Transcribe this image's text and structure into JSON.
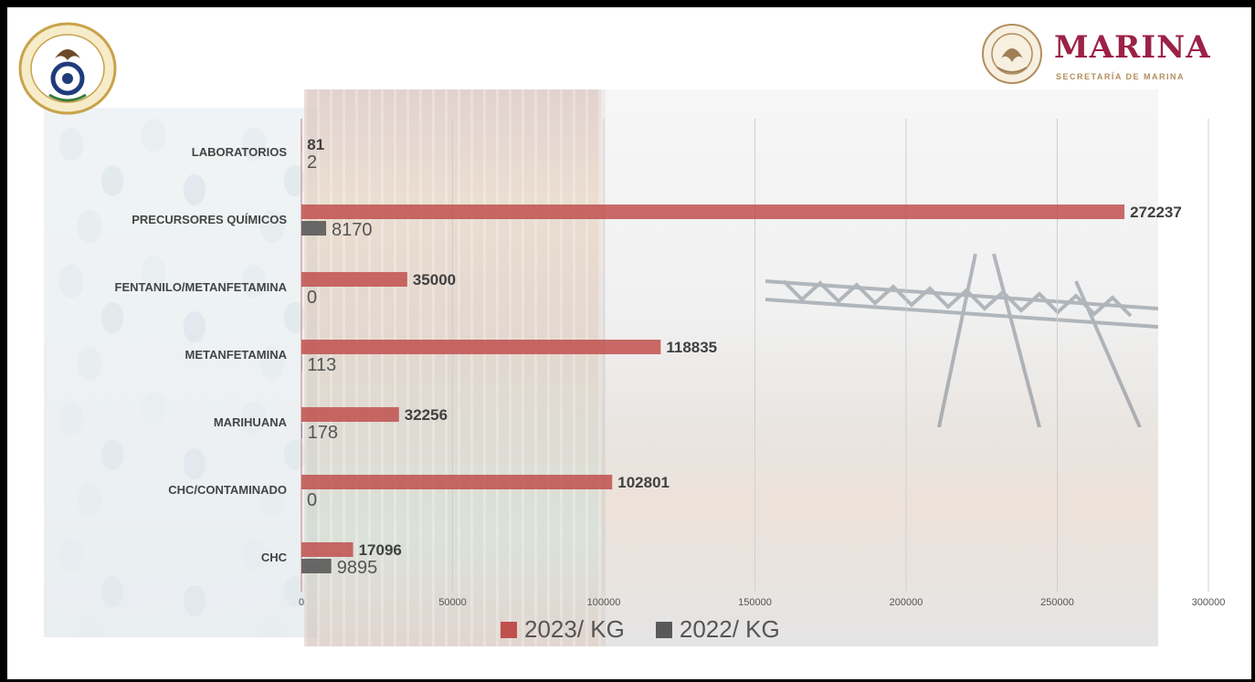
{
  "branding": {
    "left_seal_icon": "autoridad-maritima-nacional-seal-icon",
    "right_logo_word": "MARINA",
    "right_logo_subtitle": "SECRETARÍA DE MARINA",
    "brand_color": "#9b2247"
  },
  "chart_data": {
    "type": "bar",
    "orientation": "horizontal",
    "categories": [
      "LABORATORIOS",
      "PRECURSORES QUÍMICOS",
      "FENTANILO/METANFETAMINA",
      "METANFETAMINA",
      "MARIHUANA",
      "CHC/CONTAMINADO",
      "CHC"
    ],
    "series": [
      {
        "name": "2023/ KG",
        "color": "#c0504d",
        "values": [
          81,
          272237,
          35000,
          118835,
          32256,
          102801,
          17096
        ]
      },
      {
        "name": "2022/ KG",
        "color": "#595959",
        "values": [
          2,
          8170,
          0,
          113,
          178,
          0,
          9895
        ]
      }
    ],
    "xlim": [
      0,
      300000
    ],
    "xticks": [
      "0",
      "50000",
      "100000",
      "150000",
      "200000",
      "250000",
      "300000"
    ],
    "grid": true,
    "legend_position": "bottom",
    "title": "",
    "xlabel": "",
    "ylabel": ""
  }
}
